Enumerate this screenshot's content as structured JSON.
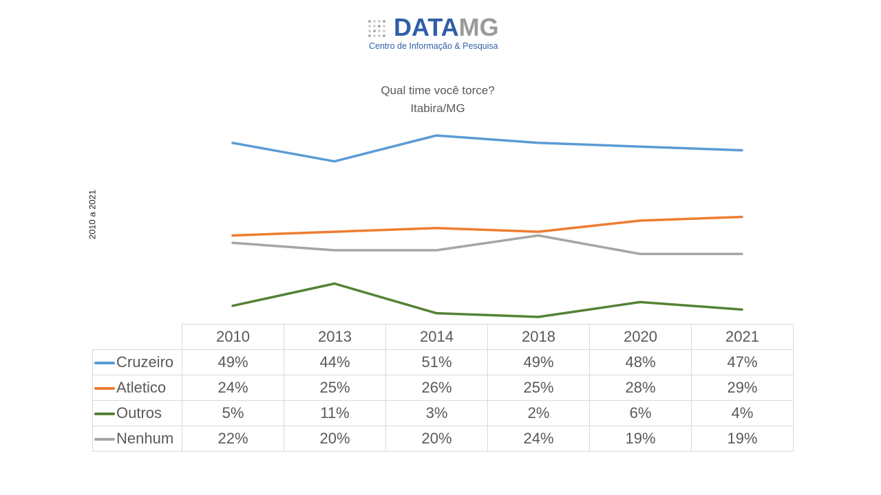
{
  "logo": {
    "brand_primary": "DATA",
    "brand_secondary": "MG",
    "tagline": "Centro de Informação & Pesquisa",
    "colors": {
      "primary": "#2f5da8",
      "secondary": "#9a9a9a"
    }
  },
  "chart_data": {
    "type": "line",
    "title": "Qual time você torce?",
    "subtitle": "Itabira/MG",
    "ylabel": "2010 a 2021",
    "xlabel": "",
    "grid": false,
    "legend": "data-table",
    "categories": [
      "2010",
      "2013",
      "2014",
      "2018",
      "2020",
      "2021"
    ],
    "series": [
      {
        "name": "Cruzeiro",
        "color": "#5b9bd5",
        "values": [
          49,
          44,
          51,
          49,
          48,
          47
        ],
        "labels": [
          "49%",
          "44%",
          "51%",
          "49%",
          "48%",
          "47%"
        ]
      },
      {
        "name": "Atletico",
        "color": "#ed7d31",
        "values": [
          24,
          25,
          26,
          25,
          28,
          29
        ],
        "labels": [
          "24%",
          "25%",
          "26%",
          "25%",
          "28%",
          "29%"
        ]
      },
      {
        "name": "Outros",
        "color": "#548235",
        "values": [
          5,
          11,
          3,
          2,
          6,
          4
        ],
        "labels": [
          "5%",
          "11%",
          "3%",
          "2%",
          "6%",
          "4%"
        ]
      },
      {
        "name": "Nenhum",
        "color": "#a5a5a5",
        "values": [
          22,
          20,
          20,
          24,
          19,
          19
        ],
        "labels": [
          "22%",
          "20%",
          "20%",
          "24%",
          "19%",
          "19%"
        ]
      }
    ]
  }
}
